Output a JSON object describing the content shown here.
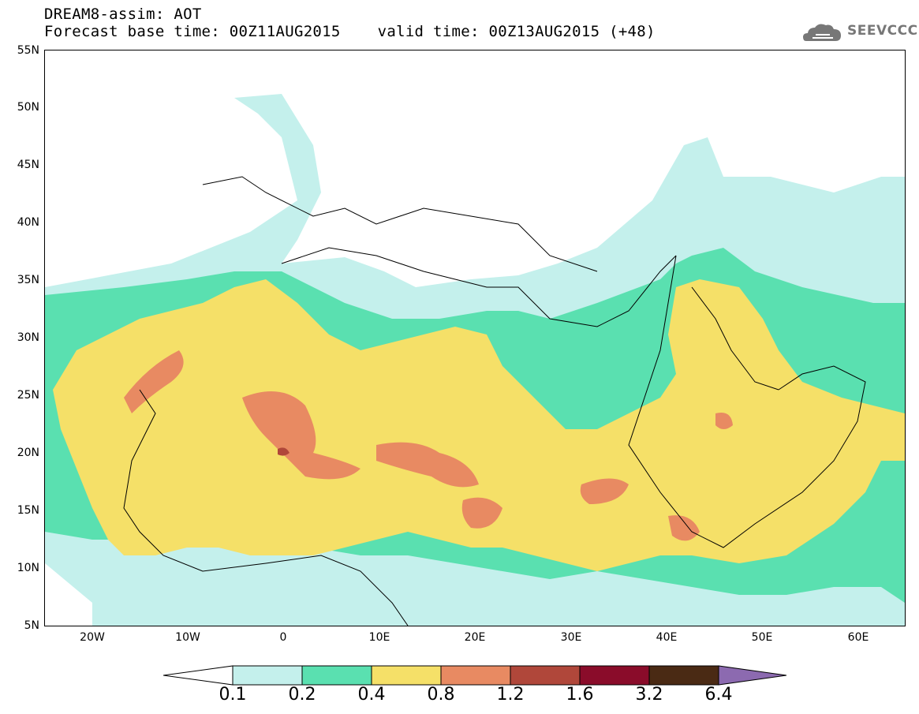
{
  "header": {
    "title_line1": "DREAM8-assim: AOT",
    "title_line2": "Forecast base time: 00Z11AUG2015    valid time: 00Z13AUG2015 (+48)"
  },
  "logo": {
    "text": "SEEVCCC",
    "icon": "cloud-icon"
  },
  "map": {
    "lat_labels": [
      "55N",
      "50N",
      "45N",
      "40N",
      "35N",
      "30N",
      "25N",
      "20N",
      "15N",
      "10N",
      "5N"
    ],
    "lon_labels": [
      "20W",
      "10W",
      "0",
      "10E",
      "20E",
      "30E",
      "40E",
      "50E",
      "60E"
    ],
    "lat_range": [
      5,
      55
    ],
    "lon_range": [
      -25,
      65
    ]
  },
  "legend": {
    "levels": [
      "0.1",
      "0.2",
      "0.4",
      "0.8",
      "1.2",
      "1.6",
      "3.2",
      "6.4"
    ],
    "colors": [
      "#ffffff",
      "#c4f0ec",
      "#5ae0b0",
      "#f5e068",
      "#e88a62",
      "#b0473a",
      "#8a0c2a",
      "#4a2a14",
      "#8c6ab0"
    ],
    "bins": [
      {
        "label": "below 0.1",
        "color": "#ffffff"
      },
      {
        "label": "0.1-0.2",
        "color": "#c4f0ec"
      },
      {
        "label": "0.2-0.4",
        "color": "#5ae0b0"
      },
      {
        "label": "0.4-0.8",
        "color": "#f5e068"
      },
      {
        "label": "0.8-1.2",
        "color": "#e88a62"
      },
      {
        "label": "1.2-1.6",
        "color": "#b0473a"
      },
      {
        "label": "1.6-3.2",
        "color": "#8a0c2a"
      },
      {
        "label": "3.2-6.4",
        "color": "#4a2a14"
      },
      {
        "label": "above 6.4",
        "color": "#8c6ab0"
      }
    ]
  }
}
